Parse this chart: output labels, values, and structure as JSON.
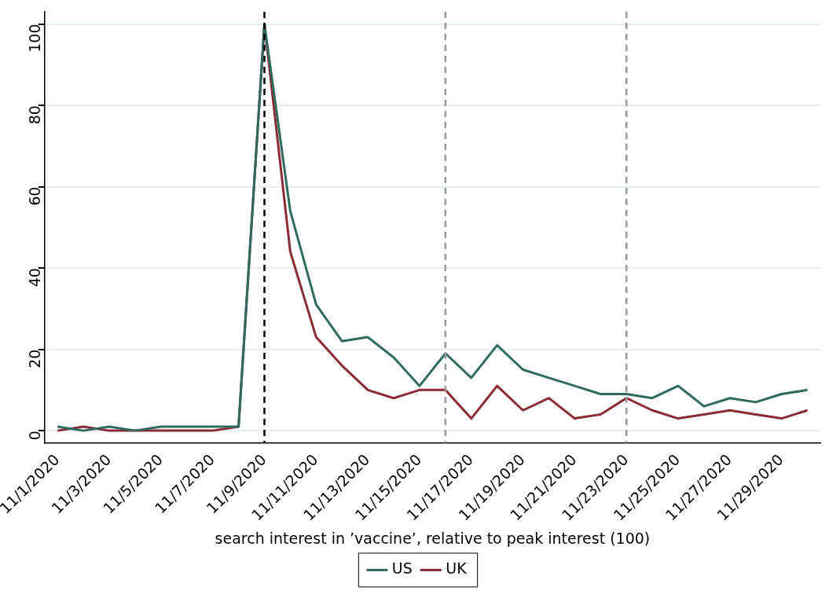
{
  "chart_data": {
    "type": "line",
    "xlabel": "search interest in ’vaccine’, relative to peak interest (100)",
    "x": [
      "2020-11-01",
      "2020-11-02",
      "2020-11-03",
      "2020-11-04",
      "2020-11-05",
      "2020-11-06",
      "2020-11-07",
      "2020-11-08",
      "2020-11-09",
      "2020-11-10",
      "2020-11-11",
      "2020-11-12",
      "2020-11-13",
      "2020-11-14",
      "2020-11-15",
      "2020-11-16",
      "2020-11-17",
      "2020-11-18",
      "2020-11-19",
      "2020-11-20",
      "2020-11-21",
      "2020-11-22",
      "2020-11-23",
      "2020-11-24",
      "2020-11-25",
      "2020-11-26",
      "2020-11-27",
      "2020-11-28",
      "2020-11-29",
      "2020-11-30"
    ],
    "series": [
      {
        "name": "US",
        "color": "#2e6b5e",
        "values": [
          1,
          0,
          1,
          0,
          1,
          1,
          1,
          1,
          100,
          54,
          31,
          22,
          23,
          18,
          11,
          19,
          13,
          21,
          15,
          13,
          11,
          9,
          9,
          8,
          11,
          6,
          8,
          7,
          9,
          10
        ]
      },
      {
        "name": "UK",
        "color": "#8b2a35",
        "values": [
          0,
          1,
          0,
          0,
          0,
          0,
          0,
          1,
          100,
          44,
          23,
          16,
          10,
          8,
          10,
          10,
          3,
          11,
          5,
          8,
          3,
          4,
          8,
          5,
          3,
          4,
          5,
          4,
          3,
          5
        ]
      }
    ],
    "xlim": [
      "2020-10-31T12:00",
      "2020-11-30T12:00"
    ],
    "xticks": [
      {
        "value": "2020-11-01",
        "label": "11/1/2020"
      },
      {
        "value": "2020-11-03",
        "label": "11/3/2020"
      },
      {
        "value": "2020-11-05",
        "label": "11/5/2020"
      },
      {
        "value": "2020-11-07",
        "label": "11/7/2020"
      },
      {
        "value": "2020-11-09",
        "label": "11/9/2020"
      },
      {
        "value": "2020-11-11",
        "label": "11/11/2020"
      },
      {
        "value": "2020-11-13",
        "label": "11/13/2020"
      },
      {
        "value": "2020-11-15",
        "label": "11/15/2020"
      },
      {
        "value": "2020-11-17",
        "label": "11/17/2020"
      },
      {
        "value": "2020-11-19",
        "label": "11/19/2020"
      },
      {
        "value": "2020-11-21",
        "label": "11/21/2020"
      },
      {
        "value": "2020-11-23",
        "label": "11/23/2020"
      },
      {
        "value": "2020-11-25",
        "label": "11/25/2020"
      },
      {
        "value": "2020-11-27",
        "label": "11/27/2020"
      },
      {
        "value": "2020-11-29",
        "label": "11/29/2020"
      }
    ],
    "ylim": [
      -3,
      103
    ],
    "yticks": [
      0,
      20,
      40,
      60,
      80,
      100
    ],
    "ref_lines": [
      {
        "axis": "x",
        "value": "2020-11-09",
        "color": "#000000",
        "line_style": "dashed"
      },
      {
        "axis": "x",
        "value": "2020-11-16",
        "color": "#999999",
        "line_style": "dashed"
      },
      {
        "axis": "x",
        "value": "2020-11-23",
        "color": "#999999",
        "line_style": "dashed"
      }
    ],
    "grid": "y",
    "legend": "bottom",
    "marker": "none",
    "line_style": "solid"
  }
}
